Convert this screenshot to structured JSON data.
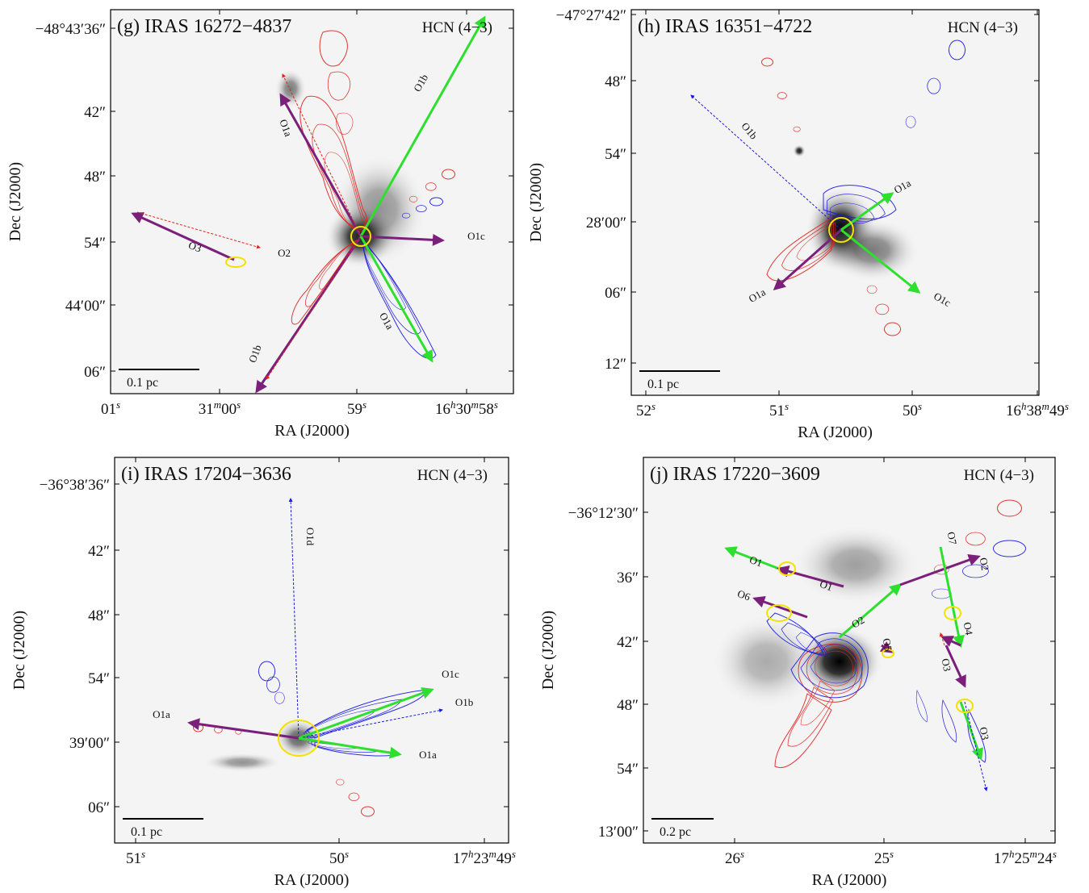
{
  "panels": [
    {
      "title": "(g) IRAS 16272−4837",
      "line": "HCN (4−3)",
      "scale_bar": "0.1 pc",
      "x_label": "RA (J2000)",
      "y_label": "Dec (J2000)",
      "x_ticks": [
        [
          "01",
          "s"
        ],
        [
          "31",
          "m",
          "00",
          "s"
        ],
        [
          "59",
          "s"
        ],
        [
          "16",
          "h",
          "30",
          "m",
          "58",
          "s"
        ]
      ],
      "y_ticks": [
        "−48°43′36″",
        "42″",
        "48″",
        "54″",
        "44′00″",
        "06″"
      ],
      "outflow_labels": [
        "O1b",
        "O1a",
        "O2",
        "O3",
        "O1c",
        "O1a",
        "O1b"
      ]
    },
    {
      "title": "(h) IRAS 16351−4722",
      "line": "HCN (4−3)",
      "scale_bar": "0.1 pc",
      "x_label": "RA (J2000)",
      "y_label": "Dec (J2000)",
      "x_ticks": [
        [
          "52",
          "s"
        ],
        [
          "51",
          "s"
        ],
        [
          "50",
          "s"
        ],
        [
          "16",
          "h",
          "38",
          "m",
          "49",
          "s"
        ]
      ],
      "y_ticks": [
        "−47°27′42″",
        "48″",
        "54″",
        "28′00″",
        "06″",
        "12″"
      ],
      "outflow_labels": [
        "O1b",
        "O1a",
        "O1a",
        "O1c"
      ]
    },
    {
      "title": "(i) IRAS 17204−3636",
      "line": "HCN (4−3)",
      "scale_bar": "0.1 pc",
      "x_label": "RA (J2000)",
      "y_label": "Dec (J2000)",
      "x_ticks": [
        [
          "51",
          "s"
        ],
        [
          "50",
          "s"
        ],
        [
          "17",
          "h",
          "23",
          "m",
          "49",
          "s"
        ]
      ],
      "y_ticks": [
        "−36°38′36″",
        "42″",
        "48″",
        "54″",
        "39′00″",
        "06″"
      ],
      "outflow_labels": [
        "O1d",
        "O1c",
        "O1b",
        "O1a",
        "O1a"
      ]
    },
    {
      "title": "(j) IRAS 17220−3609",
      "line": "HCN (4−3)",
      "scale_bar": "0.2 pc",
      "x_label": "RA (J2000)",
      "y_label": "Dec (J2000)",
      "x_ticks": [
        [
          "26",
          "s"
        ],
        [
          "25",
          "s"
        ],
        [
          "17",
          "h",
          "25",
          "m",
          "24",
          "s"
        ]
      ],
      "y_ticks": [
        "−36°12′30″",
        "36″",
        "42″",
        "48″",
        "54″",
        "13′00″"
      ],
      "outflow_labels": [
        "O1",
        "O1",
        "O6",
        "O2",
        "O7",
        "O2",
        "O5",
        "O4",
        "O3",
        "O3"
      ]
    }
  ]
}
